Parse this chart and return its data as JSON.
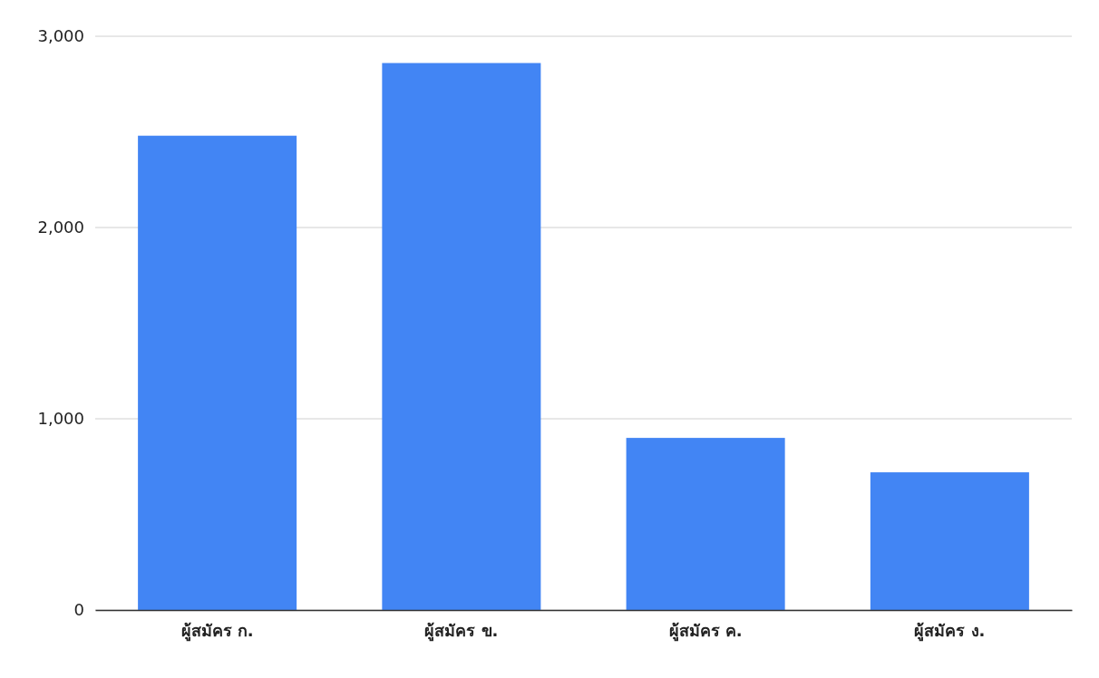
{
  "chart_data": {
    "type": "bar",
    "categories": [
      "ผู้สมัคร ก.",
      "ผู้สมัคร ข.",
      "ผู้สมัคร ค.",
      "ผู้สมัคร ง."
    ],
    "values": [
      2480,
      2860,
      900,
      720
    ],
    "color": "#4285f4",
    "ylim": [
      0,
      3000
    ],
    "yticks": [
      0,
      {
        "value": 1000,
        "label": "1,000"
      },
      {
        "value": 2000,
        "label": "2,000"
      },
      {
        "value": 3000,
        "label": "3,000"
      }
    ],
    "grid": "y"
  }
}
